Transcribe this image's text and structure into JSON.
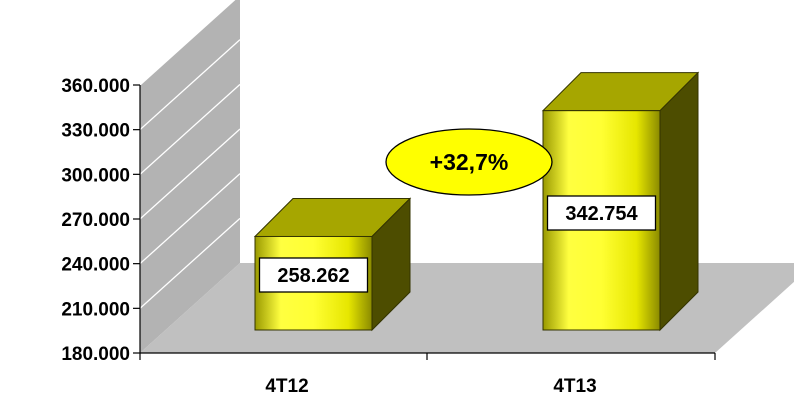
{
  "chart_data": {
    "type": "bar",
    "categories": [
      "4T12",
      "4T13"
    ],
    "values": [
      258262,
      342754
    ],
    "data_labels": [
      "258.262",
      "342.754"
    ],
    "ylim": [
      180000,
      360000
    ],
    "yticks": [
      180000,
      210000,
      240000,
      270000,
      300000,
      330000,
      360000
    ],
    "ytick_labels": [
      "180.000",
      "210.000",
      "240.000",
      "270.000",
      "300.000",
      "330.000",
      "360.000"
    ],
    "annotation": "+32,7%",
    "title": "",
    "xlabel": "",
    "ylabel": "",
    "grid": true,
    "colors": {
      "bar_front": "#ffff33",
      "bar_side": "#4d4d00",
      "bar_top": "#a6a600",
      "wall": "#b3b3b3",
      "floor": "#c0c0c0",
      "annotation_fill": "#ffff00"
    }
  }
}
